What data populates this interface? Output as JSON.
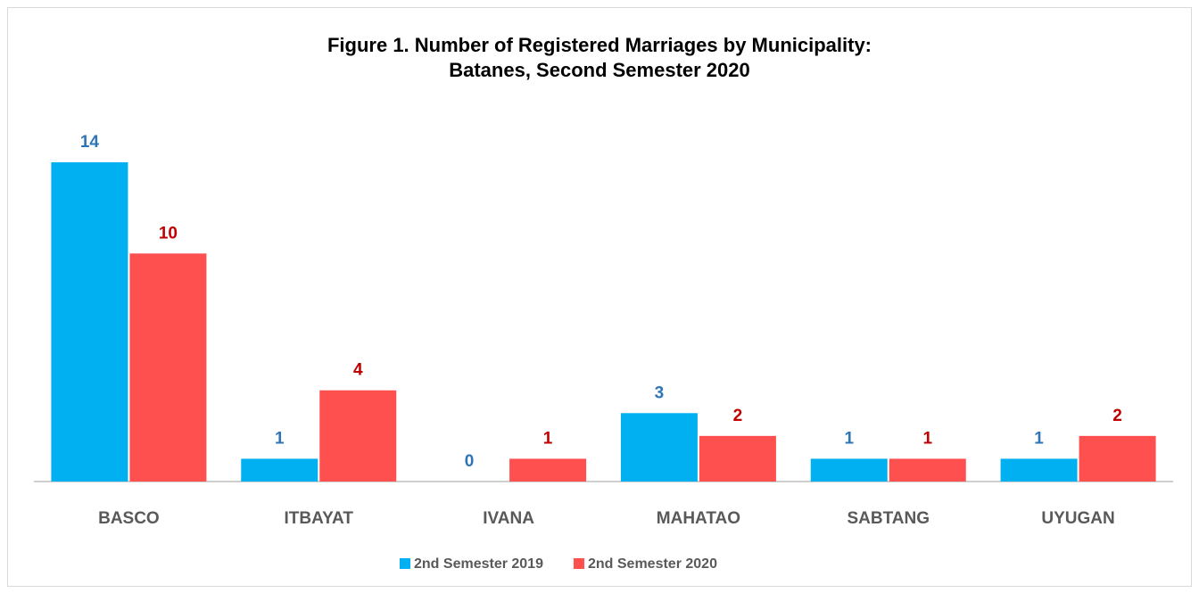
{
  "chart_data": {
    "type": "bar",
    "title": [
      "Figure 1. Number of Registered Marriages by Municipality:",
      "Batanes, Second Semester 2020"
    ],
    "categories": [
      "BASCO",
      "ITBAYAT",
      "IVANA",
      "MAHATAO",
      "SABTANG",
      "UYUGAN"
    ],
    "series": [
      {
        "name": "2nd Semester 2019",
        "color": "#00b0f0",
        "label_color": "#2e75b6",
        "values": [
          14,
          1,
          0,
          3,
          1,
          1
        ]
      },
      {
        "name": "2nd Semester 2020",
        "color": "#ff5050",
        "label_color": "#c00000",
        "values": [
          10,
          4,
          1,
          2,
          1,
          2
        ]
      }
    ],
    "ylim": [
      0,
      14
    ],
    "legend": "bottom"
  }
}
